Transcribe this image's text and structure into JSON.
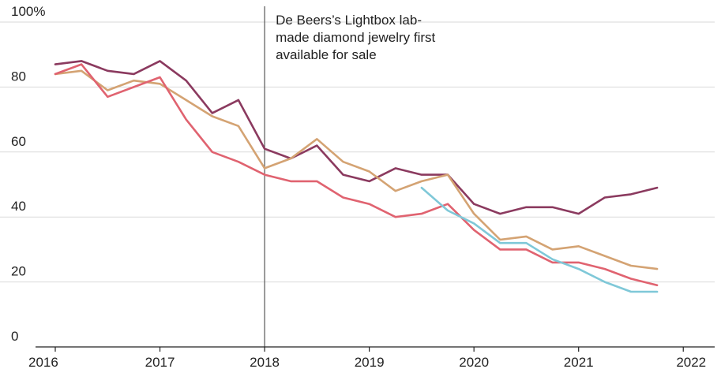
{
  "chart_data": {
    "type": "line",
    "x_unit": "year",
    "xlim": [
      2016,
      2022.3
    ],
    "ylim": [
      0,
      100
    ],
    "yticks": [
      0,
      20,
      40,
      60,
      80,
      100
    ],
    "ytick_labels": [
      "0",
      "20",
      "40",
      "60",
      "80",
      "100%"
    ],
    "xticks": [
      2016,
      2017,
      2018,
      2019,
      2020,
      2021,
      2022
    ],
    "xtick_labels": [
      "2016",
      "2017",
      "2018",
      "2019",
      "2020",
      "2021",
      "2022"
    ],
    "grid": true,
    "annotation": {
      "x": 2018,
      "lines": [
        "De Beers’s Lightbox lab-",
        "made diamond jewelry first",
        "available for sale"
      ]
    },
    "series": [
      {
        "color": "#8b3a5f",
        "points": [
          [
            2016.0,
            87
          ],
          [
            2016.25,
            88
          ],
          [
            2016.5,
            85
          ],
          [
            2016.75,
            84
          ],
          [
            2017.0,
            88
          ],
          [
            2017.25,
            82
          ],
          [
            2017.5,
            72
          ],
          [
            2017.75,
            76
          ],
          [
            2018.0,
            61
          ],
          [
            2018.25,
            58
          ],
          [
            2018.5,
            62
          ],
          [
            2018.75,
            53
          ],
          [
            2019.0,
            51
          ],
          [
            2019.25,
            55
          ],
          [
            2019.5,
            53
          ],
          [
            2019.75,
            53
          ],
          [
            2020.0,
            44
          ],
          [
            2020.25,
            41
          ],
          [
            2020.5,
            43
          ],
          [
            2020.75,
            43
          ],
          [
            2021.0,
            41
          ],
          [
            2021.25,
            46
          ],
          [
            2021.5,
            47
          ],
          [
            2021.75,
            49
          ]
        ]
      },
      {
        "color": "#d4a373",
        "points": [
          [
            2016.0,
            84
          ],
          [
            2016.25,
            85
          ],
          [
            2016.5,
            79
          ],
          [
            2016.75,
            82
          ],
          [
            2017.0,
            81
          ],
          [
            2017.25,
            76
          ],
          [
            2017.5,
            71
          ],
          [
            2017.75,
            68
          ],
          [
            2018.0,
            55
          ],
          [
            2018.25,
            58
          ],
          [
            2018.5,
            64
          ],
          [
            2018.75,
            57
          ],
          [
            2019.0,
            54
          ],
          [
            2019.25,
            48
          ],
          [
            2019.5,
            51
          ],
          [
            2019.75,
            53
          ],
          [
            2020.0,
            41
          ],
          [
            2020.25,
            33
          ],
          [
            2020.5,
            34
          ],
          [
            2020.75,
            30
          ],
          [
            2021.0,
            31
          ],
          [
            2021.25,
            28
          ],
          [
            2021.5,
            25
          ],
          [
            2021.75,
            24
          ]
        ]
      },
      {
        "color": "#e06370",
        "points": [
          [
            2016.0,
            84
          ],
          [
            2016.25,
            87
          ],
          [
            2016.5,
            77
          ],
          [
            2016.75,
            80
          ],
          [
            2017.0,
            83
          ],
          [
            2017.25,
            70
          ],
          [
            2017.5,
            60
          ],
          [
            2017.75,
            57
          ],
          [
            2018.0,
            53
          ],
          [
            2018.25,
            51
          ],
          [
            2018.5,
            51
          ],
          [
            2018.75,
            46
          ],
          [
            2019.0,
            44
          ],
          [
            2019.25,
            40
          ],
          [
            2019.5,
            41
          ],
          [
            2019.75,
            44
          ],
          [
            2020.0,
            36
          ],
          [
            2020.25,
            30
          ],
          [
            2020.5,
            30
          ],
          [
            2020.75,
            26
          ],
          [
            2021.0,
            26
          ],
          [
            2021.25,
            24
          ],
          [
            2021.5,
            21
          ],
          [
            2021.75,
            19
          ]
        ]
      },
      {
        "color": "#7fc8d8",
        "points": [
          [
            2019.5,
            49
          ],
          [
            2019.75,
            42
          ],
          [
            2020.0,
            38
          ],
          [
            2020.25,
            32
          ],
          [
            2020.5,
            32
          ],
          [
            2020.75,
            27
          ],
          [
            2021.0,
            24
          ],
          [
            2021.25,
            20
          ],
          [
            2021.5,
            17
          ],
          [
            2021.75,
            17
          ]
        ]
      }
    ]
  }
}
